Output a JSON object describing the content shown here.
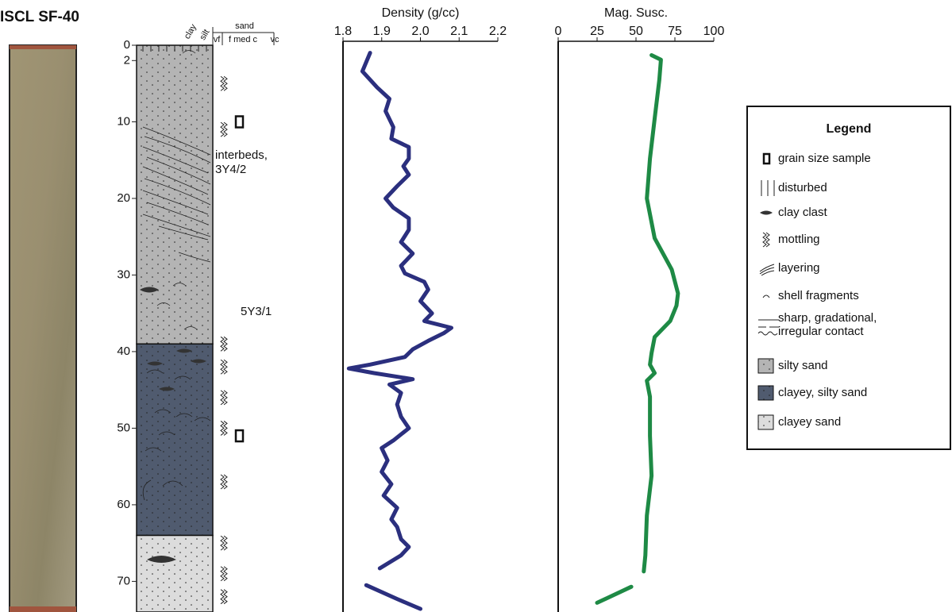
{
  "chart_data": [
    {
      "type": "core-log",
      "title": "ISCL SF-40",
      "ylim": [
        0,
        74
      ],
      "yticks": [
        0,
        2,
        10,
        20,
        30,
        40,
        50,
        60,
        70
      ],
      "grain_labels": [
        "clay",
        "silt",
        "sand",
        "vf",
        "f med c",
        "vc"
      ],
      "units": [
        {
          "top": 0,
          "bottom": 39,
          "color": "#b4b4b4"
        },
        {
          "top": 39,
          "bottom": 64,
          "color": "#505b6f"
        },
        {
          "top": 64,
          "bottom": 74,
          "color": "#dcdcdc"
        }
      ],
      "annotations": [
        "interbeds,",
        "3Y4/2",
        "5Y3/1"
      ],
      "mottling_depths": [
        5,
        11,
        39,
        42,
        46,
        50,
        57,
        65,
        69,
        72
      ],
      "sample_depths": [
        10,
        51
      ],
      "legend": {
        "title": "Legend",
        "items": [
          "grain size sample",
          "disturbed",
          "clay clast",
          "mottling",
          "layering",
          "shell fragments",
          "sharp, gradational,",
          "irregular contact",
          "silty sand",
          "clayey, silty sand",
          "clayey sand"
        ]
      }
    },
    {
      "type": "line",
      "title": "Density (g/cc)",
      "xlim": [
        1.8,
        2.2
      ],
      "xticks": [
        1.8,
        1.9,
        {
          "value": 2,
          "label": "2.0"
        },
        2.1,
        2.2
      ],
      "ylim": [
        0,
        74
      ],
      "depth": [
        1,
        3.4,
        5.5,
        7,
        8.6,
        10.7,
        12.2,
        13.3,
        14.8,
        15.8,
        16.9,
        18.4,
        20,
        21.2,
        22.6,
        24.1,
        25.7,
        27.2,
        28.8,
        29.8,
        30.9,
        31.9,
        33.4,
        35,
        36,
        36.9,
        37.6,
        38.6,
        39.7,
        40.7,
        41.7,
        42.2,
        42.8,
        43.6,
        44.3,
        45.4,
        46.9,
        48.5,
        50,
        51.6,
        52.6,
        54.2,
        55.7,
        57.3,
        58.8,
        60.4,
        61.9,
        62.9,
        64.5,
        65.5,
        66.6,
        68.3,
        69.4,
        70.5,
        72.3,
        73.6
      ],
      "series": [
        {
          "color": "#2b2f7e",
          "values": [
            1.87,
            1.85,
            1.888,
            1.92,
            1.91,
            1.93,
            1.925,
            1.97,
            1.97,
            1.956,
            1.97,
            1.94,
            1.91,
            1.93,
            1.97,
            1.97,
            1.95,
            1.98,
            1.95,
            1.96,
            2.01,
            2.02,
            2.0,
            2.03,
            2.01,
            2.08,
            2.06,
            2.02,
            1.98,
            1.96,
            1.87,
            1.815,
            1.88,
            1.98,
            1.92,
            1.95,
            1.94,
            1.95,
            1.97,
            1.93,
            1.9,
            1.915,
            1.9,
            1.925,
            1.905,
            1.94,
            1.925,
            1.94,
            1.95,
            1.97,
            1.95,
            1.895,
            null,
            1.86,
            1.94,
            2.0
          ]
        }
      ]
    },
    {
      "type": "line",
      "title": "Mag. Susc.",
      "xlim": [
        0,
        100
      ],
      "xticks": [
        0,
        25,
        50,
        75,
        100
      ],
      "ylim": [
        0,
        74
      ],
      "depth": [
        1.3,
        1.9,
        4.5,
        9.6,
        14.8,
        20,
        25.2,
        29.3,
        32.4,
        34,
        36,
        38.1,
        40.2,
        41.7,
        42.8,
        43.8,
        45.9,
        51,
        56.2,
        61.4,
        66.6,
        68.7,
        69.7,
        70.7,
        72.8
      ],
      "series": [
        {
          "color": "#1e8a45",
          "values": [
            60,
            66,
            65,
            62,
            59,
            57,
            62,
            73,
            77,
            76,
            72,
            62,
            60,
            59,
            62,
            57,
            59,
            59,
            60,
            57,
            56,
            55,
            null,
            47,
            25
          ]
        }
      ]
    }
  ]
}
